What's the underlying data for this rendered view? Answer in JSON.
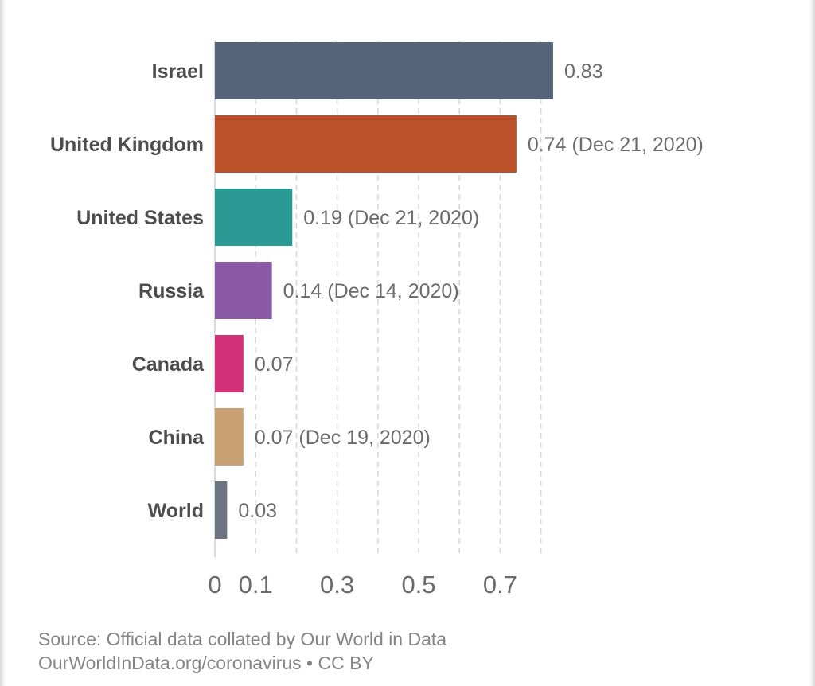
{
  "chart_data": {
    "type": "bar",
    "orientation": "horizontal",
    "categories": [
      "Israel",
      "United Kingdom",
      "United States",
      "Russia",
      "Canada",
      "China",
      "World"
    ],
    "values": [
      0.83,
      0.74,
      0.19,
      0.14,
      0.07,
      0.07,
      0.03
    ],
    "value_labels": [
      "0.83",
      "0.74 (Dec 21, 2020)",
      "0.19 (Dec 21, 2020)",
      "0.14 (Dec 14, 2020)",
      "0.07",
      "0.07 (Dec 19, 2020)",
      "0.03"
    ],
    "colors": [
      "#566479",
      "#bb5128",
      "#2b9a94",
      "#8b5aa7",
      "#d3327a",
      "#c9a072",
      "#6d7380"
    ],
    "x_ticks": [
      0,
      0.1,
      0.3,
      0.5,
      0.7
    ],
    "x_tick_labels": [
      "0",
      "0.1",
      "0.3",
      "0.5",
      "0.7"
    ],
    "gridlines": [
      0.1,
      0.2,
      0.3,
      0.4,
      0.5,
      0.6,
      0.7,
      0.8
    ],
    "xlim": [
      0,
      0.83
    ],
    "grid": true,
    "title": "",
    "xlabel": "",
    "ylabel": ""
  },
  "footer": {
    "source_line": "Source: Official data collated by Our World in Data",
    "license_line": "OurWorldInData.org/coronavirus • CC BY"
  }
}
